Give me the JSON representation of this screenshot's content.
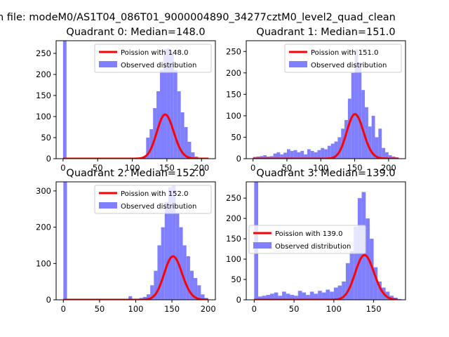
{
  "suptitle": "n file: modeM0/AS1T04_086T01_9000004890_34277cztM0_level2_quad_clean",
  "colors": {
    "hist": "#7f7fff",
    "poisson": "#ff0000"
  },
  "chart_data": [
    {
      "type": "bar",
      "id": "q0",
      "title": "Quadrant 0: Median=148.0",
      "xlim": [
        -10,
        220
      ],
      "ylim": [
        0,
        280
      ],
      "xticks": [
        0,
        50,
        100,
        150,
        200
      ],
      "yticks": [
        0,
        50,
        100,
        150,
        200,
        250
      ],
      "legend": {
        "line_label": "Poission with 148.0",
        "hist_label": "Observed distribution",
        "placement": "top-right"
      },
      "poisson_mean": 148,
      "poisson_scale": 3200,
      "bin_edges": [
        0,
        5,
        10,
        15,
        20,
        25,
        30,
        35,
        40,
        45,
        50,
        55,
        60,
        65,
        70,
        75,
        80,
        85,
        90,
        95,
        100,
        105,
        110,
        115,
        120,
        125,
        130,
        135,
        140,
        145,
        150,
        155,
        160,
        165,
        170,
        175,
        180,
        185,
        190,
        195,
        200,
        205,
        210
      ],
      "bin_counts": [
        280,
        0,
        0,
        0,
        0,
        0,
        0,
        0,
        0,
        0,
        0,
        0,
        0,
        0,
        0,
        0,
        0,
        0,
        0,
        0,
        0,
        0,
        2,
        5,
        50,
        70,
        120,
        160,
        210,
        260,
        262,
        250,
        210,
        160,
        110,
        75,
        40,
        15,
        5,
        2,
        1,
        0
      ]
    },
    {
      "type": "bar",
      "id": "q1",
      "title": "Quadrant 1: Median=151.0",
      "xlim": [
        -10,
        225
      ],
      "ylim": [
        0,
        275
      ],
      "xticks": [
        0,
        50,
        100,
        150,
        200
      ],
      "yticks": [
        0,
        50,
        100,
        150,
        200,
        250
      ],
      "legend": {
        "line_label": "Poission with 151.0",
        "hist_label": "Observed distribution",
        "placement": "top-right"
      },
      "poisson_mean": 151,
      "poisson_scale": 3200,
      "bin_edges": [
        0,
        5,
        10,
        15,
        20,
        25,
        30,
        35,
        40,
        45,
        50,
        55,
        60,
        65,
        70,
        75,
        80,
        85,
        90,
        95,
        100,
        105,
        110,
        115,
        120,
        125,
        130,
        135,
        140,
        145,
        150,
        155,
        160,
        165,
        170,
        175,
        180,
        185,
        190,
        195,
        200,
        205,
        210,
        215
      ],
      "bin_counts": [
        4,
        5,
        6,
        8,
        5,
        6,
        12,
        15,
        10,
        14,
        22,
        18,
        20,
        15,
        18,
        10,
        22,
        18,
        15,
        20,
        25,
        22,
        30,
        35,
        40,
        50,
        70,
        90,
        140,
        200,
        255,
        225,
        160,
        120,
        75,
        100,
        50,
        70,
        25,
        15,
        8,
        5,
        3
      ]
    },
    {
      "type": "bar",
      "id": "q2",
      "title": "Quadrant 2: Median=152.0",
      "xlim": [
        -10,
        210
      ],
      "ylim": [
        0,
        325
      ],
      "xticks": [
        0,
        50,
        100,
        150,
        200
      ],
      "yticks": [
        0,
        100,
        200,
        300
      ],
      "legend": {
        "line_label": "Poission with 152.0",
        "hist_label": "Observed distribution",
        "placement": "top-right"
      },
      "poisson_mean": 152,
      "poisson_scale": 3700,
      "bin_edges": [
        0,
        5,
        10,
        15,
        20,
        25,
        30,
        35,
        40,
        45,
        50,
        55,
        60,
        65,
        70,
        75,
        80,
        85,
        90,
        95,
        100,
        105,
        110,
        115,
        120,
        125,
        130,
        135,
        140,
        145,
        150,
        155,
        160,
        165,
        170,
        175,
        180,
        185,
        190,
        195,
        200,
        205
      ],
      "bin_counts": [
        330,
        0,
        0,
        0,
        0,
        0,
        0,
        0,
        0,
        0,
        0,
        0,
        0,
        0,
        0,
        0,
        0,
        0,
        10,
        0,
        0,
        5,
        8,
        15,
        40,
        80,
        150,
        200,
        270,
        310,
        315,
        240,
        200,
        150,
        120,
        80,
        60,
        40,
        15,
        5,
        0
      ]
    },
    {
      "type": "bar",
      "id": "q3",
      "title": "Quadrant 3: Median=139.0",
      "xlim": [
        -10,
        190
      ],
      "ylim": [
        0,
        290
      ],
      "xticks": [
        0,
        50,
        100,
        150
      ],
      "yticks": [
        0,
        50,
        100,
        150,
        200,
        250
      ],
      "legend": {
        "line_label": "Poission with 139.0",
        "hist_label": "Observed distribution",
        "placement": "center-left"
      },
      "poisson_mean": 139,
      "poisson_scale": 3250,
      "bin_edges": [
        0,
        5,
        10,
        15,
        20,
        25,
        30,
        35,
        40,
        45,
        50,
        55,
        60,
        65,
        70,
        75,
        80,
        85,
        90,
        95,
        100,
        105,
        110,
        115,
        120,
        125,
        130,
        135,
        140,
        145,
        150,
        155,
        160,
        165,
        170,
        175,
        180,
        185
      ],
      "bin_counts": [
        290,
        8,
        10,
        12,
        15,
        18,
        10,
        20,
        15,
        12,
        10,
        22,
        18,
        12,
        20,
        15,
        22,
        18,
        25,
        20,
        30,
        35,
        45,
        90,
        120,
        180,
        250,
        265,
        200,
        150,
        80,
        45,
        30,
        20,
        10,
        5,
        2
      ]
    }
  ]
}
